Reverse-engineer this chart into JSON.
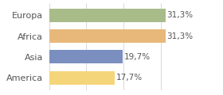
{
  "categories": [
    "Europa",
    "Africa",
    "Asia",
    "America"
  ],
  "values": [
    31.3,
    31.3,
    19.7,
    17.7
  ],
  "bar_colors": [
    "#a8bc8a",
    "#e8b87a",
    "#7a8fbf",
    "#f5d57a"
  ],
  "xlim": [
    0,
    36
  ],
  "background_color": "#ffffff",
  "text_color": "#555555",
  "bar_label_fontsize": 7.5,
  "category_fontsize": 8.0,
  "bar_height": 0.65
}
